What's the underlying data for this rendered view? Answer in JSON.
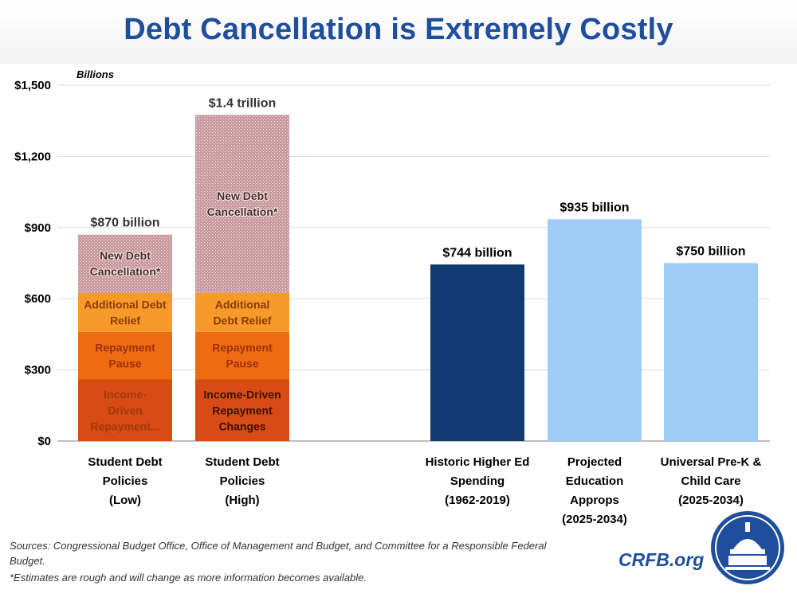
{
  "title": "Debt Cancellation is Extremely Costly",
  "footer": {
    "sources_line1": "Sources: Congressional Budget Office, Office of Management and Budget, and Committee for a Responsible Federal",
    "sources_line2": "Budget.",
    "note": "*Estimates are rough and will change as more information becomes available.",
    "brand": "CRFB.org"
  },
  "colors": {
    "income_driven": "#d84b14",
    "repayment_pause": "#ee6b12",
    "additional_relief": "#f89a2a",
    "new_cancellation": "#cfa3a8",
    "historic": "#113a73",
    "light_blue": "#9fcdf7",
    "grid": "#d9d9d9"
  },
  "chart_data": {
    "type": "bar",
    "stacked": true,
    "unit_label": "Billions",
    "ylim": [
      0,
      1500
    ],
    "yticks": [
      0,
      300,
      600,
      900,
      1200,
      1500
    ],
    "ytick_labels": [
      "$0",
      "$300",
      "$600",
      "$900",
      "$1,200",
      "$1,500"
    ],
    "grid": true,
    "categories": [
      {
        "label": [
          "Student Debt",
          "Policies",
          "(Low)"
        ],
        "total_label": "$870 billion"
      },
      {
        "label": [
          "Student Debt",
          "Policies",
          "(High)"
        ],
        "total_label": "$1.4 trillion"
      },
      {
        "label": [],
        "total_label": ""
      },
      {
        "label": [
          "Historic Higher Ed",
          "Spending",
          "(1962-2019)"
        ],
        "total_label": "$744 billion"
      },
      {
        "label": [
          "Projected",
          "Education",
          "Approps",
          "(2025-2034)"
        ],
        "total_label": "$935 billion"
      },
      {
        "label": [
          "Universal Pre-K &",
          "Child Care",
          "(2025-2034)"
        ],
        "total_label": "$750 billion"
      }
    ],
    "series": [
      {
        "key": "income_driven",
        "labels": [
          [
            "Income-",
            "Driven",
            "Repayment..."
          ],
          [
            "Income-Driven",
            "Repayment",
            "Changes"
          ]
        ],
        "values": [
          260,
          260,
          null,
          null,
          null,
          null
        ]
      },
      {
        "key": "repayment_pause",
        "labels": [
          [
            "Repayment",
            "Pause"
          ],
          [
            "Repayment",
            "Pause"
          ]
        ],
        "values": [
          200,
          200,
          null,
          null,
          null,
          null
        ]
      },
      {
        "key": "additional_relief",
        "labels": [
          [
            "Additional Debt",
            "Relief"
          ],
          [
            "Additional",
            "Debt Relief"
          ]
        ],
        "values": [
          165,
          165,
          null,
          null,
          null,
          null
        ]
      },
      {
        "key": "new_cancellation",
        "labels": [
          [
            "New Debt",
            "Cancellation*"
          ],
          [
            "New Debt",
            "Cancellation*"
          ]
        ],
        "values": [
          245,
          750,
          null,
          null,
          null,
          null
        ]
      },
      {
        "key": "historic",
        "labels": [],
        "values": [
          null,
          null,
          null,
          744,
          null,
          null
        ]
      },
      {
        "key": "light_blue",
        "labels": [],
        "values": [
          null,
          null,
          null,
          null,
          935,
          750
        ]
      }
    ]
  }
}
